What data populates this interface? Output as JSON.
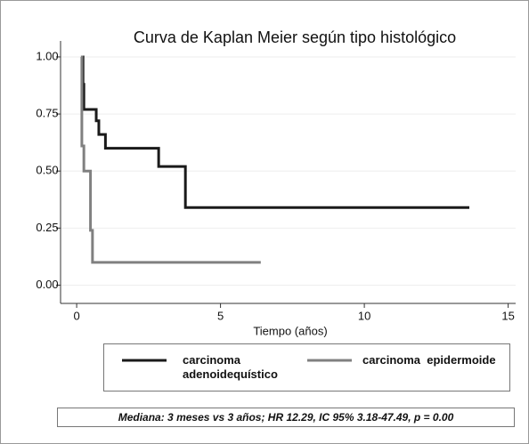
{
  "chart_data": {
    "type": "step",
    "title": "Curva de Kaplan Meier según tipo histológico",
    "x_label": "Tiempo (años)",
    "xlim": [
      -0.56,
      15.26
    ],
    "xticks": [
      0,
      5,
      10,
      15
    ],
    "ylim": [
      -0.08,
      1.07
    ],
    "yticks": [
      {
        "value": 0,
        "label": "0.00"
      },
      0.25,
      {
        "value": 0.5,
        "label": "0.50"
      },
      0.75,
      {
        "value": 1,
        "label": "1.00"
      }
    ],
    "grid": true,
    "series": [
      {
        "name": "carcinoma adenoidequístico",
        "color": "#1a1a1a",
        "x": [
          0.15,
          0.22,
          0.25,
          0.68,
          0.77,
          1.0,
          2.85,
          3.78,
          13.65
        ],
        "values": [
          1.0,
          0.88,
          0.77,
          0.72,
          0.66,
          0.6,
          0.52,
          0.34,
          0.34
        ]
      },
      {
        "name": "carcinoma  epidermoide",
        "color": "#808080",
        "x": [
          0.15,
          0.18,
          0.25,
          0.48,
          0.55,
          6.4
        ],
        "values": [
          1.0,
          0.61,
          0.5,
          0.24,
          0.1,
          0.1
        ]
      }
    ],
    "note": "Mediana: 3 meses vs 3 años; HR 12.29, IC 95% 3.18-47.49, p = 0.00"
  }
}
